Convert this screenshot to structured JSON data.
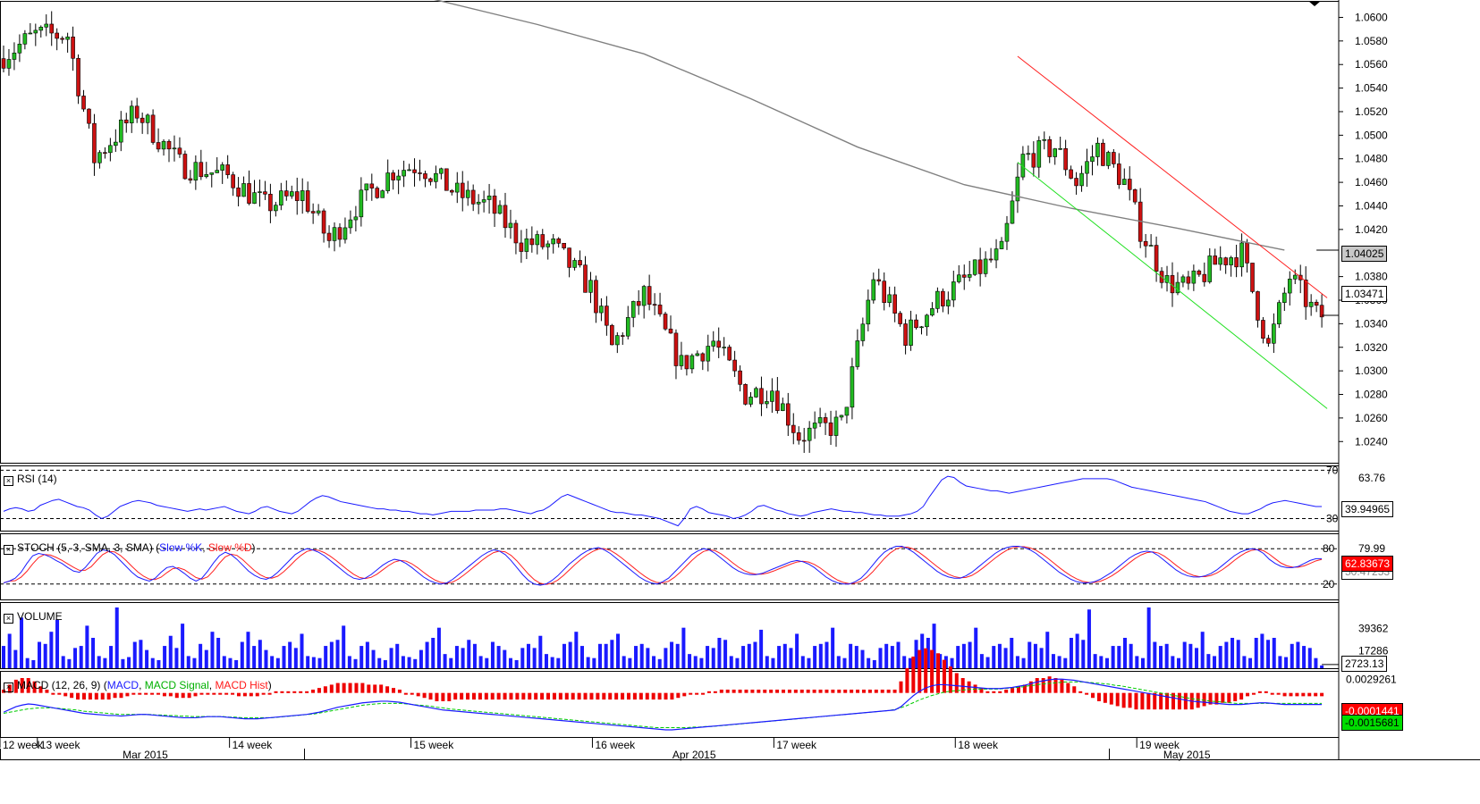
{
  "chart_data": {
    "type": "candlestick",
    "price_axis": {
      "ticks": [
        "1.0600",
        "1.0580",
        "1.0560",
        "1.0540",
        "1.0520",
        "1.0500",
        "1.0480",
        "1.0460",
        "1.0440",
        "1.0420",
        "1.0380",
        "1.0360",
        "1.0340",
        "1.0320",
        "1.0300",
        "1.0280",
        "1.0260",
        "1.0240"
      ],
      "range": [
        1.0222,
        1.0614
      ],
      "current_price_label": "1.03471",
      "current_price": 1.03471,
      "ma_label": "1.04025",
      "ma_value": 1.04025
    },
    "x_axis": {
      "week_labels": [
        {
          "label": "12 week",
          "index": 0
        },
        {
          "label": "13 week",
          "index": 7
        },
        {
          "label": "14 week",
          "index": 43
        },
        {
          "label": "15 week",
          "index": 77
        },
        {
          "label": "16 week",
          "index": 111
        },
        {
          "label": "17 week",
          "index": 145
        },
        {
          "label": "18 week",
          "index": 179
        },
        {
          "label": "19 week",
          "index": 213
        }
      ],
      "month_labels": [
        {
          "label": "Mar 2015",
          "index": 27
        },
        {
          "label": "Apr 2015",
          "index": 130
        },
        {
          "label": "May 2015",
          "index": 222
        }
      ]
    },
    "trendlines": [
      {
        "color": "#ff2020",
        "from": {
          "index": 190,
          "price": 1.0567
        },
        "to": {
          "index": 248,
          "price": 1.0362
        }
      },
      {
        "color": "#20e020",
        "from": {
          "index": 190,
          "price": 1.0477
        },
        "to": {
          "index": 248,
          "price": 1.0268
        }
      }
    ],
    "ma_curve": [
      {
        "index": 80,
        "price": 1.0616
      },
      {
        "index": 100,
        "price": 1.0594
      },
      {
        "index": 120,
        "price": 1.0569
      },
      {
        "index": 140,
        "price": 1.0531
      },
      {
        "index": 160,
        "price": 1.049
      },
      {
        "index": 180,
        "price": 1.0458
      },
      {
        "index": 200,
        "price": 1.0438
      },
      {
        "index": 220,
        "price": 1.0421
      },
      {
        "index": 240,
        "price": 1.04025
      }
    ],
    "rsi": {
      "label": "RSI (14)",
      "levels": [
        "70",
        "30"
      ],
      "tick": "63.76",
      "value_label": "39.94965",
      "range": [
        20,
        74
      ],
      "series": [
        36,
        38,
        39,
        38,
        36,
        37,
        41,
        43,
        45,
        46,
        44,
        42,
        40,
        39,
        37,
        33,
        30,
        32,
        36,
        40,
        42,
        44,
        45,
        44,
        43,
        41,
        40,
        39,
        38,
        37,
        36,
        37,
        38,
        37,
        38,
        39,
        40,
        38,
        36,
        35,
        34,
        36,
        39,
        40,
        38,
        36,
        35,
        34,
        36,
        40,
        44,
        47,
        49,
        48,
        46,
        44,
        43,
        42,
        41,
        40,
        39,
        38,
        38,
        37,
        37,
        36,
        36,
        35,
        34,
        34,
        33,
        34,
        35,
        36,
        36,
        36,
        36,
        37,
        37,
        37,
        37,
        38,
        38,
        37,
        36,
        35,
        34,
        36,
        37,
        40,
        44,
        48,
        50,
        48,
        46,
        44,
        42,
        40,
        38,
        36,
        35,
        35,
        34,
        33,
        33,
        32,
        31,
        30,
        28,
        26,
        24,
        30,
        38,
        40,
        38,
        35,
        34,
        33,
        32,
        30,
        31,
        33,
        36,
        40,
        41,
        39,
        37,
        36,
        34,
        33,
        32,
        33,
        35,
        36,
        37,
        38,
        37,
        36,
        36,
        35,
        35,
        34,
        33,
        33,
        32,
        32,
        32,
        33,
        34,
        36,
        40,
        48,
        55,
        62,
        65,
        64,
        60,
        57,
        56,
        55,
        54,
        53,
        53,
        52,
        51,
        52,
        53,
        54,
        55,
        56,
        57,
        58,
        59,
        60,
        61,
        62,
        63,
        63,
        63,
        63,
        63,
        62,
        60,
        58,
        56,
        55,
        54,
        53,
        52,
        51,
        50,
        49,
        48,
        47,
        46,
        45,
        44,
        42,
        40,
        38,
        36,
        35,
        34,
        34,
        36,
        38,
        41,
        43,
        44,
        45,
        44,
        43,
        42,
        41,
        40,
        40
      ]
    },
    "stoch": {
      "label": "STOCH (5, 3, SMA, 3, SMA)",
      "legend": [
        "Slow %K",
        "Slow %D"
      ],
      "levels": [
        "80",
        "20"
      ],
      "ticks": [
        "79.99",
        "39.67"
      ],
      "value_label_k": "62.83673",
      "value_label_d": "50.47253",
      "range": [
        0,
        100
      ],
      "k_series": [
        22,
        25,
        30,
        40,
        55,
        68,
        72,
        70,
        66,
        60,
        55,
        48,
        42,
        40,
        48,
        60,
        72,
        78,
        76,
        70,
        60,
        50,
        40,
        32,
        28,
        25,
        30,
        40,
        48,
        50,
        45,
        38,
        30,
        25,
        30,
        42,
        56,
        68,
        74,
        70,
        62,
        52,
        42,
        35,
        30,
        28,
        32,
        40,
        50,
        60,
        70,
        76,
        80,
        78,
        74,
        68,
        60,
        52,
        44,
        36,
        30,
        28,
        30,
        36,
        44,
        52,
        58,
        62,
        60,
        55,
        48,
        40,
        32,
        26,
        22,
        20,
        22,
        28,
        36,
        44,
        52,
        60,
        68,
        74,
        78,
        76,
        70,
        60,
        48,
        36,
        26,
        20,
        18,
        20,
        26,
        34,
        44,
        54,
        62,
        70,
        76,
        80,
        82,
        78,
        72,
        64,
        56,
        48,
        40,
        32,
        26,
        22,
        20,
        24,
        30,
        40,
        50,
        60,
        70,
        76,
        80,
        78,
        72,
        64,
        56,
        48,
        42,
        38,
        36,
        36,
        38,
        42,
        46,
        50,
        54,
        58,
        60,
        58,
        54,
        48,
        40,
        32,
        26,
        22,
        20,
        20,
        24,
        30,
        40,
        52,
        64,
        74,
        80,
        84,
        84,
        80,
        74,
        66,
        58,
        50,
        42,
        36,
        32,
        30,
        30,
        34,
        40,
        48,
        56,
        64,
        72,
        78,
        82,
        84,
        84,
        82,
        78,
        72,
        64,
        56,
        48,
        40,
        34,
        28,
        24,
        22,
        22,
        24,
        28,
        34,
        40,
        48,
        56,
        64,
        70,
        74,
        76,
        74,
        68,
        60,
        52,
        44,
        38,
        34,
        32,
        32,
        34,
        38,
        44,
        52,
        60,
        68,
        74,
        78,
        80,
        78,
        72,
        62,
        55,
        50,
        48,
        48,
        50,
        55,
        60,
        63,
        63
      ]
    },
    "volume": {
      "label": "VOLUME",
      "ticks": [
        "39362",
        "17286"
      ],
      "value_label": "2723.13",
      "max": 60000,
      "series": [
        22000,
        34000,
        18000,
        50000,
        10000,
        8000,
        26000,
        24000,
        36000,
        48000,
        12000,
        9000,
        20000,
        22000,
        42000,
        30000,
        12000,
        10000,
        22000,
        60000,
        9000,
        11000,
        26000,
        28000,
        18000,
        10000,
        8000,
        22000,
        32000,
        20000,
        44000,
        12000,
        10000,
        24000,
        18000,
        36000,
        30000,
        12000,
        10000,
        8000,
        26000,
        36000,
        22000,
        28000,
        18000,
        12000,
        10000,
        22000,
        26000,
        20000,
        34000,
        12000,
        11000,
        10000,
        22000,
        26000,
        28000,
        42000,
        12000,
        9000,
        22000,
        26000,
        18000,
        10000,
        8000,
        20000,
        24000,
        12000,
        11000,
        9000,
        18000,
        26000,
        30000,
        40000,
        14000,
        10000,
        22000,
        20000,
        28000,
        24000,
        12000,
        10000,
        26000,
        22000,
        18000,
        10000,
        8000,
        20000,
        24000,
        20000,
        32000,
        14000,
        11000,
        10000,
        24000,
        26000,
        36000,
        22000,
        11000,
        10000,
        24000,
        24000,
        28000,
        34000,
        12000,
        10000,
        22000,
        24000,
        20000,
        12000,
        9000,
        20000,
        26000,
        24000,
        40000,
        14000,
        12000,
        10000,
        22000,
        20000,
        30000,
        28000,
        12000,
        10000,
        22000,
        24000,
        26000,
        38000,
        12000,
        10000,
        22000,
        24000,
        20000,
        34000,
        12000,
        10000,
        22000,
        24000,
        26000,
        40000,
        12000,
        10000,
        24000,
        22000,
        18000,
        10000,
        8000,
        20000,
        24000,
        22000,
        26000,
        12000,
        10000,
        28000,
        34000,
        30000,
        44000,
        14000,
        12000,
        10000,
        22000,
        24000,
        26000,
        40000,
        14000,
        11000,
        22000,
        24000,
        20000,
        30000,
        12000,
        10000,
        26000,
        24000,
        20000,
        36000,
        14000,
        12000,
        10000,
        30000,
        34000,
        28000,
        58000,
        14000,
        12000,
        10000,
        22000,
        22000,
        30000,
        24000,
        12000,
        10000,
        60000,
        26000,
        22000,
        24000,
        12000,
        10000,
        26000,
        24000,
        20000,
        36000,
        14000,
        12000,
        22000,
        26000,
        30000,
        28000,
        12000,
        10000,
        30000,
        34000,
        28000,
        30000,
        12000,
        11000,
        24000,
        26000,
        22000,
        20000,
        10000,
        2723
      ]
    },
    "macd": {
      "label": "MACD (12, 26, 9)",
      "legend": [
        "MACD",
        "MACD Signal",
        "MACD Hist"
      ],
      "ticks": [
        "0.0029261"
      ],
      "value_label_signal": "-0.0001441",
      "value_label_macd": "-0.0015681",
      "range": [
        -0.0075,
        0.0045
      ],
      "macd_series": [
        -0.003,
        -0.0025,
        -0.002,
        -0.0017,
        -0.0015,
        -0.0016,
        -0.0018,
        -0.002,
        -0.0022,
        -0.0024,
        -0.0026,
        -0.0028,
        -0.003,
        -0.0032,
        -0.0033,
        -0.0034,
        -0.0035,
        -0.0036,
        -0.0036,
        -0.0037,
        -0.0036,
        -0.0035,
        -0.0034,
        -0.0034,
        -0.0035,
        -0.0036,
        -0.0037,
        -0.0038,
        -0.0039,
        -0.004,
        -0.004,
        -0.004,
        -0.0039,
        -0.0038,
        -0.0038,
        -0.0038,
        -0.0039,
        -0.004,
        -0.0041,
        -0.0042,
        -0.0042,
        -0.0042,
        -0.0041,
        -0.004,
        -0.0039,
        -0.0038,
        -0.0037,
        -0.0036,
        -0.0035,
        -0.0034,
        -0.0032,
        -0.003,
        -0.0027,
        -0.0024,
        -0.0021,
        -0.0019,
        -0.0017,
        -0.0015,
        -0.0013,
        -0.0012,
        -0.0011,
        -0.001,
        -0.001,
        -0.0011,
        -0.0012,
        -0.0014,
        -0.0016,
        -0.0018,
        -0.002,
        -0.0022,
        -0.0024,
        -0.0026,
        -0.0027,
        -0.0028,
        -0.0029,
        -0.003,
        -0.0031,
        -0.0032,
        -0.0033,
        -0.0034,
        -0.0035,
        -0.0036,
        -0.0037,
        -0.0038,
        -0.0039,
        -0.004,
        -0.0041,
        -0.0042,
        -0.0043,
        -0.0044,
        -0.0045,
        -0.0046,
        -0.0047,
        -0.0048,
        -0.0049,
        -0.005,
        -0.0051,
        -0.0052,
        -0.0053,
        -0.0054,
        -0.0055,
        -0.0056,
        -0.0057,
        -0.0058,
        -0.0059,
        -0.006,
        -0.0061,
        -0.0062,
        -0.0062,
        -0.0061,
        -0.006,
        -0.0059,
        -0.0058,
        -0.0057,
        -0.0056,
        -0.0055,
        -0.0054,
        -0.0053,
        -0.0052,
        -0.0051,
        -0.005,
        -0.0049,
        -0.0048,
        -0.0047,
        -0.0046,
        -0.0045,
        -0.0044,
        -0.0043,
        -0.0042,
        -0.0041,
        -0.004,
        -0.0039,
        -0.0038,
        -0.0037,
        -0.0036,
        -0.0035,
        -0.0034,
        -0.0033,
        -0.0032,
        -0.0031,
        -0.003,
        -0.0029,
        -0.0028,
        -0.0027,
        -0.0026,
        -0.002,
        -0.001,
        0.0,
        0.0008,
        0.0014,
        0.0018,
        0.002,
        0.002,
        0.0019,
        0.0018,
        0.0017,
        0.0016,
        0.0015,
        0.0014,
        0.0013,
        0.0013,
        0.0013,
        0.0014,
        0.0015,
        0.0017,
        0.0019,
        0.0022,
        0.0025,
        0.0027,
        0.0029,
        0.003,
        0.003,
        0.0029,
        0.0028,
        0.0026,
        0.0024,
        0.0022,
        0.002,
        0.0018,
        0.0016,
        0.0014,
        0.0012,
        0.001,
        0.0008,
        0.0006,
        0.0004,
        0.0002,
        0.0,
        -0.0002,
        -0.0004,
        -0.0006,
        -0.0008,
        -0.001,
        -0.0011,
        -0.0012,
        -0.0013,
        -0.0014,
        -0.0015,
        -0.0016,
        -0.0016,
        -0.0016,
        -0.0015,
        -0.0014,
        -0.0013,
        -0.0013,
        -0.0014,
        -0.0015,
        -0.0016,
        -0.0016,
        -0.0016,
        -0.0016,
        -0.0016,
        -0.0016,
        -0.0016
      ],
      "signal_series": [
        -0.0032,
        -0.003,
        -0.0028,
        -0.0026,
        -0.0024,
        -0.0023,
        -0.0022,
        -0.0022,
        -0.0022,
        -0.0023,
        -0.0024,
        -0.0025,
        -0.0026,
        -0.0028,
        -0.0029,
        -0.003,
        -0.0031,
        -0.0032,
        -0.0033,
        -0.0034,
        -0.0034,
        -0.0034,
        -0.0034,
        -0.0034,
        -0.0034,
        -0.0035,
        -0.0035,
        -0.0036,
        -0.0036,
        -0.0037,
        -0.0037,
        -0.0038,
        -0.0038,
        -0.0038,
        -0.0038,
        -0.0038,
        -0.0038,
        -0.0039,
        -0.0039,
        -0.004,
        -0.004,
        -0.004,
        -0.004,
        -0.004,
        -0.004,
        -0.0039,
        -0.0038,
        -0.0037,
        -0.0036,
        -0.0035,
        -0.0034,
        -0.0033,
        -0.0031,
        -0.0029,
        -0.0027,
        -0.0025,
        -0.0023,
        -0.0021,
        -0.0019,
        -0.0017,
        -0.0016,
        -0.0015,
        -0.0014,
        -0.0014,
        -0.0014,
        -0.0014,
        -0.0015,
        -0.0016,
        -0.0017,
        -0.0018,
        -0.0019,
        -0.0021,
        -0.0022,
        -0.0024,
        -0.0025,
        -0.0026,
        -0.0027,
        -0.0028,
        -0.0029,
        -0.003,
        -0.0031,
        -0.0032,
        -0.0033,
        -0.0034,
        -0.0035,
        -0.0036,
        -0.0037,
        -0.0038,
        -0.0039,
        -0.004,
        -0.0041,
        -0.0042,
        -0.0043,
        -0.0044,
        -0.0045,
        -0.0046,
        -0.0047,
        -0.0048,
        -0.0049,
        -0.005,
        -0.0051,
        -0.0052,
        -0.0053,
        -0.0054,
        -0.0055,
        -0.0056,
        -0.0057,
        -0.0058,
        -0.0058,
        -0.0058,
        -0.0058,
        -0.0058,
        -0.0058,
        -0.0057,
        -0.0057,
        -0.0056,
        -0.0056,
        -0.0055,
        -0.0054,
        -0.0053,
        -0.0052,
        -0.0051,
        -0.005,
        -0.0049,
        -0.0048,
        -0.0047,
        -0.0046,
        -0.0045,
        -0.0044,
        -0.0043,
        -0.0042,
        -0.0041,
        -0.004,
        -0.0039,
        -0.0038,
        -0.0037,
        -0.0036,
        -0.0035,
        -0.0034,
        -0.0033,
        -0.0032,
        -0.0031,
        -0.003,
        -0.0029,
        -0.0028,
        -0.0027,
        -0.0025,
        -0.0022,
        -0.0018,
        -0.0013,
        -0.0008,
        -0.0004,
        0.0,
        0.0003,
        0.0006,
        0.0008,
        0.0009,
        0.001,
        0.0011,
        0.0012,
        0.0012,
        0.0012,
        0.0012,
        0.0012,
        0.0013,
        0.0014,
        0.0015,
        0.0016,
        0.0018,
        0.0019,
        0.0021,
        0.0022,
        0.0023,
        0.0024,
        0.0025,
        0.0025,
        0.0025,
        0.0025,
        0.0024,
        0.0023,
        0.0022,
        0.0021,
        0.0019,
        0.0018,
        0.0016,
        0.0014,
        0.0012,
        0.001,
        0.0008,
        0.0006,
        0.0004,
        0.0002,
        0.0,
        -0.0002,
        -0.0004,
        -0.0006,
        -0.0007,
        -0.0009,
        -0.001,
        -0.0011,
        -0.0012,
        -0.0013,
        -0.0014,
        -0.0014,
        -0.0014,
        -0.0014,
        -0.0014,
        -0.0014,
        -0.0014,
        -0.0014,
        -0.0014,
        -0.0014,
        -0.0014,
        -0.0014,
        -0.0014,
        -0.0014,
        -0.0014
      ]
    }
  }
}
